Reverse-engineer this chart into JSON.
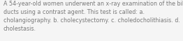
{
  "text": "A 54-year-old women underwent an x-ray examination of the bile\nducts using a contrast agent. This test is called: a.\ncholangiography. b. cholecystectomy. c. choledocholithiasis. d.\ncholestasis.",
  "background_color": "#f5f5f5",
  "text_color": "#7a7a7a",
  "font_size": 5.8,
  "fig_width": 2.62,
  "fig_height": 0.59,
  "dpi": 100
}
